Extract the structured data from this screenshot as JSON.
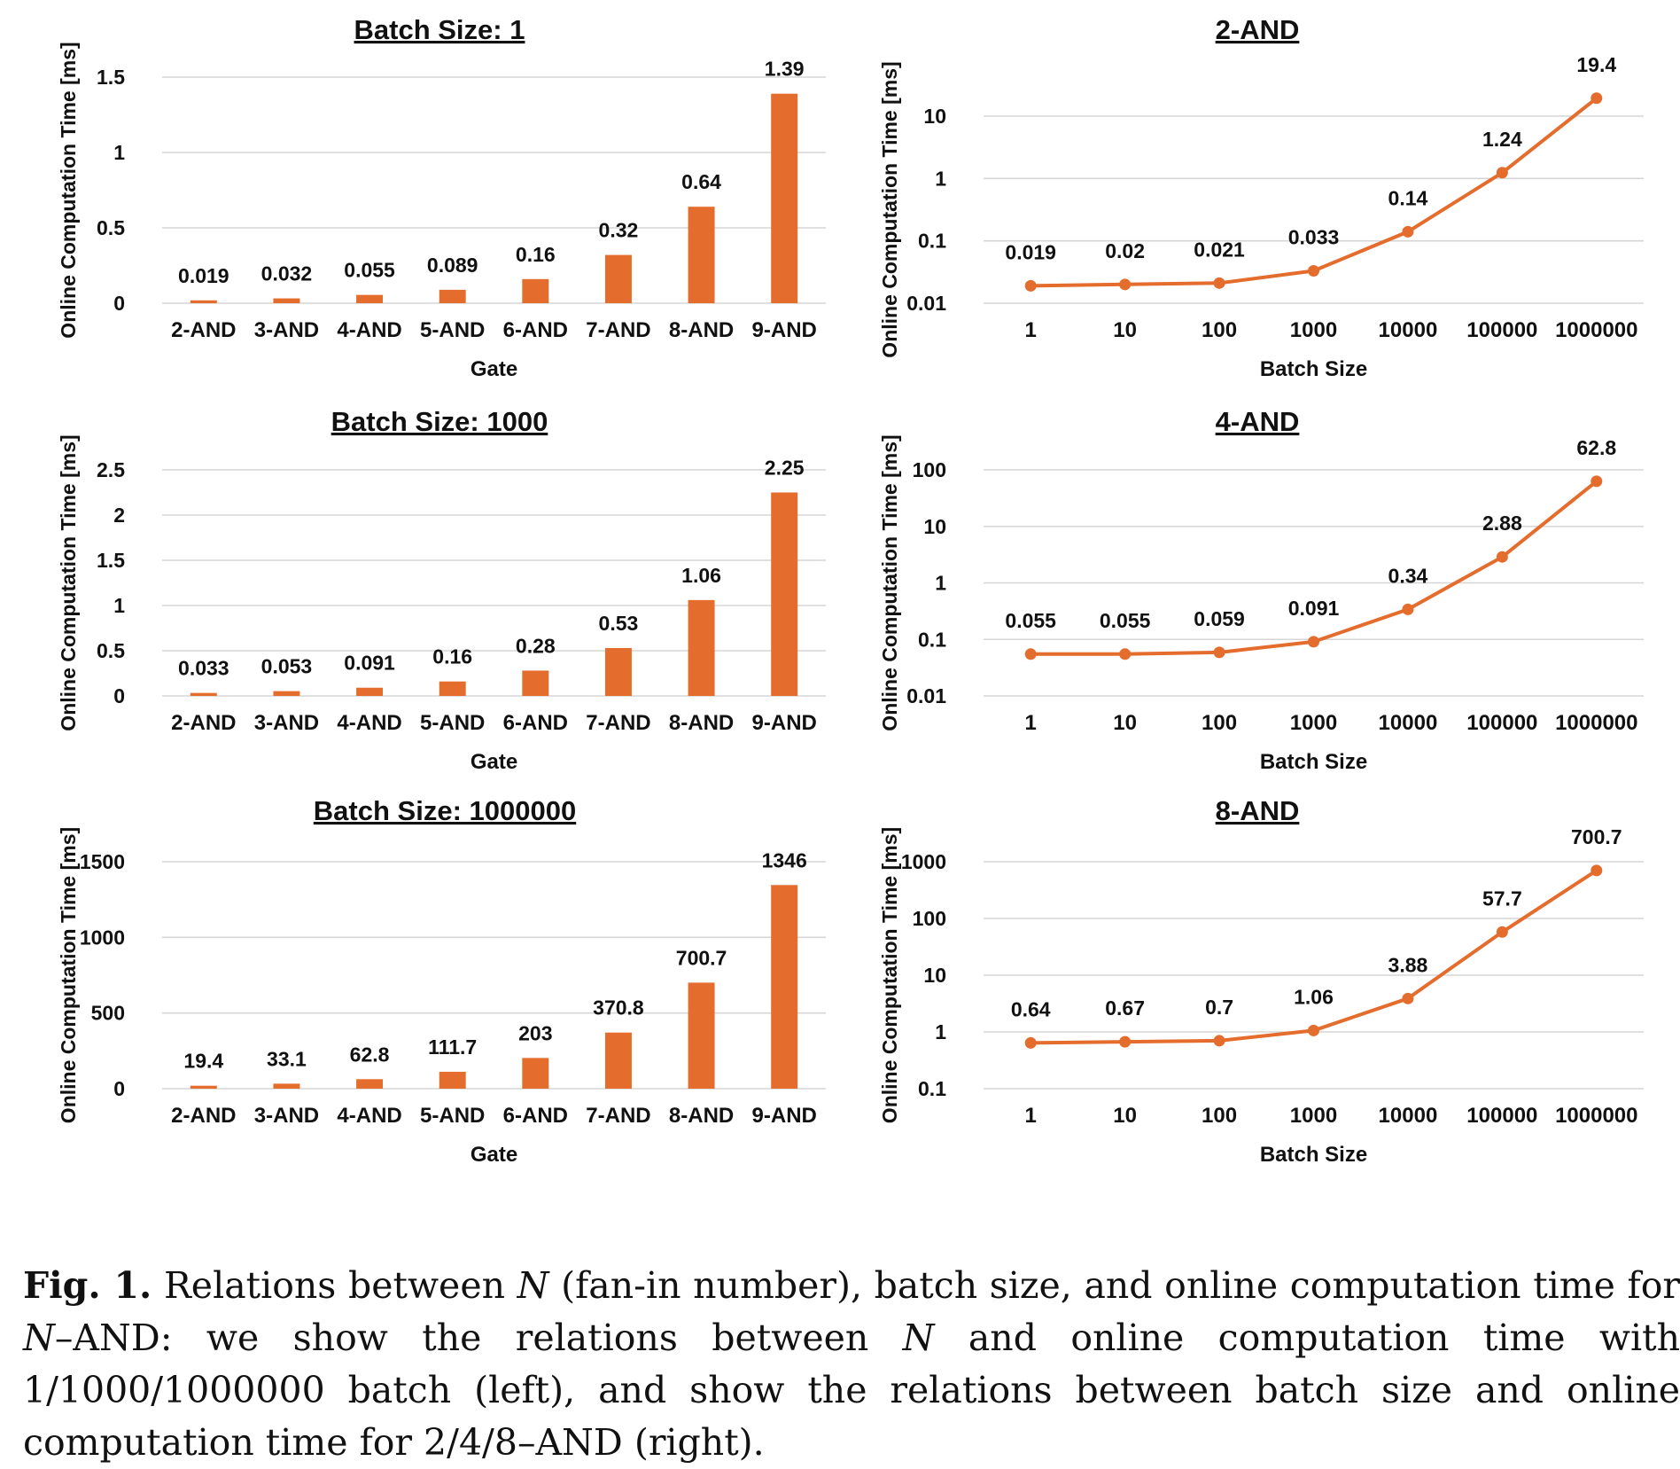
{
  "chart_data": [
    {
      "type": "bar",
      "title": "Batch Size: 1",
      "xlabel": "Gate",
      "ylabel": "Online Computation Time [ms]",
      "categories": [
        "2-AND",
        "3-AND",
        "4-AND",
        "5-AND",
        "6-AND",
        "7-AND",
        "8-AND",
        "9-AND"
      ],
      "values": [
        0.019,
        0.032,
        0.055,
        0.089,
        0.16,
        0.32,
        0.64,
        1.39
      ],
      "value_labels": [
        "0.019",
        "0.032",
        "0.055",
        "0.089",
        "0.16",
        "0.32",
        "0.64",
        "1.39"
      ],
      "ylim": [
        0,
        1.5
      ],
      "yticks": [
        0,
        0.5,
        1,
        1.5
      ],
      "ytick_labels": [
        "0",
        "0.5",
        "1",
        "1.5"
      ],
      "grid": true,
      "color": "#E46C2C"
    },
    {
      "type": "bar",
      "title": "Batch Size: 1000",
      "xlabel": "Gate",
      "ylabel": "Online Computation Time [ms]",
      "categories": [
        "2-AND",
        "3-AND",
        "4-AND",
        "5-AND",
        "6-AND",
        "7-AND",
        "8-AND",
        "9-AND"
      ],
      "values": [
        0.033,
        0.053,
        0.091,
        0.16,
        0.28,
        0.53,
        1.06,
        2.25
      ],
      "value_labels": [
        "0.033",
        "0.053",
        "0.091",
        "0.16",
        "0.28",
        "0.53",
        "1.06",
        "2.25"
      ],
      "ylim": [
        0,
        2.5
      ],
      "yticks": [
        0,
        0.5,
        1,
        1.5,
        2,
        2.5
      ],
      "ytick_labels": [
        "0",
        "0.5",
        "1",
        "1.5",
        "2",
        "2.5"
      ],
      "grid": true,
      "color": "#E46C2C"
    },
    {
      "type": "bar",
      "title": "Batch Size: 1000000",
      "xlabel": "Gate",
      "ylabel": "Online Computation Time [ms]",
      "categories": [
        "2-AND",
        "3-AND",
        "4-AND",
        "5-AND",
        "6-AND",
        "7-AND",
        "8-AND",
        "9-AND"
      ],
      "values": [
        19.4,
        33.1,
        62.8,
        111.7,
        203,
        370.8,
        700.7,
        1346
      ],
      "value_labels": [
        "19.4",
        "33.1",
        "62.8",
        "111.7",
        "203",
        "370.8",
        "700.7",
        "1346"
      ],
      "ylim": [
        0,
        1500
      ],
      "yticks": [
        0,
        500,
        1000,
        1500
      ],
      "ytick_labels": [
        "0",
        "500",
        "1000",
        "1500"
      ],
      "grid": true,
      "color": "#E46C2C"
    },
    {
      "type": "line",
      "title": "2-AND",
      "xlabel": "Batch Size",
      "ylabel": "Online Computation Time [ms]",
      "categories": [
        "1",
        "10",
        "100",
        "1000",
        "10000",
        "100000",
        "1000000"
      ],
      "values": [
        0.019,
        0.02,
        0.021,
        0.033,
        0.14,
        1.24,
        19.4
      ],
      "value_labels": [
        "0.019",
        "0.02",
        "0.021",
        "0.033",
        "0.14",
        "1.24",
        "19.4"
      ],
      "yscale": "log",
      "ylim": [
        0.01,
        10
      ],
      "yticks": [
        0.01,
        0.1,
        1,
        10
      ],
      "ytick_labels": [
        "0.01",
        "0.1",
        "1",
        "10"
      ],
      "grid": true,
      "color": "#E46C2C"
    },
    {
      "type": "line",
      "title": "4-AND",
      "xlabel": "Batch Size",
      "ylabel": "Online Computation Time [ms]",
      "categories": [
        "1",
        "10",
        "100",
        "1000",
        "10000",
        "100000",
        "1000000"
      ],
      "values": [
        0.055,
        0.055,
        0.059,
        0.091,
        0.34,
        2.88,
        62.8
      ],
      "value_labels": [
        "0.055",
        "0.055",
        "0.059",
        "0.091",
        "0.34",
        "2.88",
        "62.8"
      ],
      "yscale": "log",
      "ylim": [
        0.01,
        100
      ],
      "yticks": [
        0.01,
        0.1,
        1,
        10,
        100
      ],
      "ytick_labels": [
        "0.01",
        "0.1",
        "1",
        "10",
        "100"
      ],
      "grid": true,
      "color": "#E46C2C"
    },
    {
      "type": "line",
      "title": "8-AND",
      "xlabel": "Batch Size",
      "ylabel": "Online Computation Time [ms]",
      "categories": [
        "1",
        "10",
        "100",
        "1000",
        "10000",
        "100000",
        "1000000"
      ],
      "values": [
        0.64,
        0.67,
        0.7,
        1.06,
        3.88,
        57.7,
        700.7
      ],
      "value_labels": [
        "0.64",
        "0.67",
        "0.7",
        "1.06",
        "3.88",
        "57.7",
        "700.7"
      ],
      "yscale": "log",
      "ylim": [
        0.1,
        1000
      ],
      "yticks": [
        0.1,
        1,
        10,
        100,
        1000
      ],
      "ytick_labels": [
        "0.1",
        "1",
        "10",
        "100",
        "1000"
      ],
      "grid": true,
      "color": "#E46C2C"
    }
  ],
  "caption": {
    "label": "Fig. 1.",
    "text_1": " Relations between ",
    "n_1": "N",
    "text_2": " (fan-in number), batch size, and online computation time for ",
    "n_2": "N",
    "text_3": "–AND: we show the relations between ",
    "n_3": "N",
    "text_4": " and online computation time with 1/1000/1000000 batch (left), and show the relations between batch size and online computation time for 2/4/8–AND (right)."
  }
}
